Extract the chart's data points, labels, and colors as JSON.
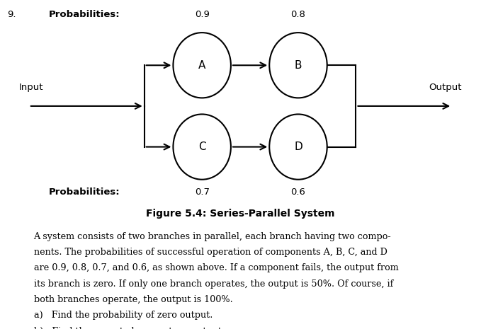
{
  "title": "Figure 5.4: Series-Parallel System",
  "node_label_A": "A",
  "node_label_B": "B",
  "node_label_C": "C",
  "node_label_D": "D",
  "prob_A": "0.9",
  "prob_B": "0.8",
  "prob_C": "0.7",
  "prob_D": "0.6",
  "label_probabilities_top": "Probabilities:",
  "label_probabilities_bottom": "Probabilities:",
  "label_input": "Input",
  "label_output": "Output",
  "background_color": "#ffffff",
  "text_color": "#000000",
  "node_color": "#ffffff",
  "node_edge_color": "#000000",
  "arrow_color": "#000000",
  "number_label": "9.",
  "body_lines": [
    "A system consists of two branches in parallel, each branch having two compo-",
    "nents. The probabilities of successful operation of components A, B, C, and D",
    "are 0.9, 0.8, 0.7, and 0.6, as shown above. If a component fails, the output from",
    "its branch is zero. If only one branch operates, the output is 50%. Of course, if",
    "both branches operate, the output is 100%."
  ],
  "question_a": "a)   Find the probability of zero output.",
  "question_b": "b)   Find the expected percentage output.",
  "fig_width": 6.79,
  "fig_height": 4.65,
  "dpi": 100
}
